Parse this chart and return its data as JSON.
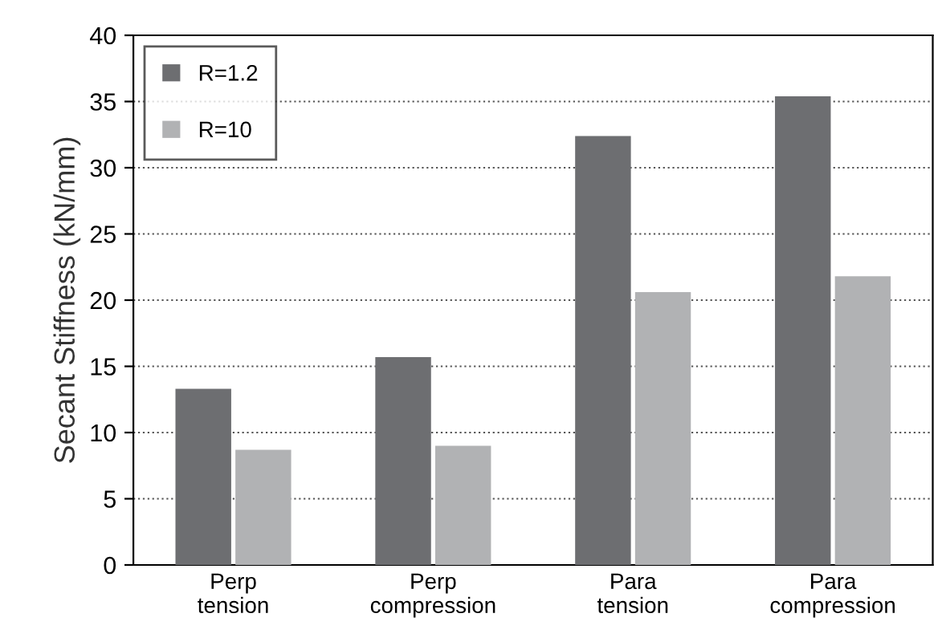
{
  "chart_data": {
    "type": "bar",
    "ylabel": "Secant Stiffness (kN/mm)",
    "categories": [
      "Perp\ntension",
      "Perp\ncompression",
      "Para\ntension",
      "Para\ncompression"
    ],
    "series": [
      {
        "name": "R=1.2",
        "color": "#6d6e71",
        "values": [
          13.3,
          15.7,
          32.4,
          35.4
        ]
      },
      {
        "name": "R=10",
        "color": "#b1b2b4",
        "values": [
          8.7,
          9.0,
          20.6,
          21.8
        ]
      }
    ],
    "ylim": [
      0,
      40
    ],
    "yticks": [
      0,
      5,
      10,
      15,
      20,
      25,
      30,
      35,
      40
    ],
    "grid": "y",
    "legend": "top left"
  }
}
